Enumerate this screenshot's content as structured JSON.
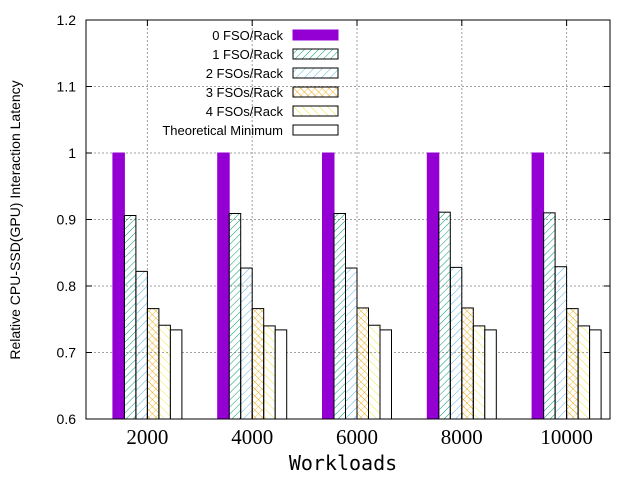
{
  "chart_data": {
    "type": "bar",
    "title": "",
    "xlabel": "Workloads",
    "ylabel": "Relative CPU-SSD(GPU) Interaction Latency",
    "categories": [
      "2000",
      "4000",
      "6000",
      "8000",
      "10000"
    ],
    "ylim": [
      0.6,
      1.2
    ],
    "yticks": [
      "0.6",
      "0.7",
      "0.8",
      "0.9",
      "1",
      "1.1",
      "1.2"
    ],
    "grid": true,
    "legend_position": "top-left",
    "series": [
      {
        "name": "0 FSO/Rack",
        "values": [
          1.0,
          1.0,
          1.0,
          1.0,
          1.0
        ],
        "color": "#9400D3",
        "pattern": "solid"
      },
      {
        "name": "1 FSO/Rack",
        "values": [
          0.906,
          0.909,
          0.909,
          0.911,
          0.91
        ],
        "color": "#009E73",
        "pattern": "hatch-dense"
      },
      {
        "name": "2 FSOs/Rack",
        "values": [
          0.822,
          0.827,
          0.827,
          0.828,
          0.829
        ],
        "color": "#56B4E9",
        "pattern": "hatch"
      },
      {
        "name": "3 FSOs/Rack",
        "values": [
          0.766,
          0.766,
          0.767,
          0.767,
          0.766
        ],
        "color": "#E69F00",
        "pattern": "hatch-cross"
      },
      {
        "name": "4 FSOs/Rack",
        "values": [
          0.741,
          0.74,
          0.741,
          0.74,
          0.74
        ],
        "color": "#F0E442",
        "pattern": "hatch"
      },
      {
        "name": "Theoretical Minimum",
        "values": [
          0.734,
          0.734,
          0.734,
          0.734,
          0.734
        ],
        "color": "#000000",
        "pattern": "empty"
      }
    ]
  }
}
